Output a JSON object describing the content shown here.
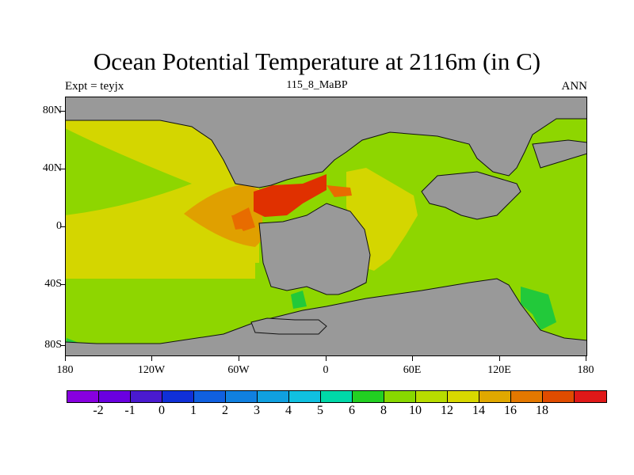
{
  "title": "Ocean Potential Temperature at 2116m (in C)",
  "subtitle_left": "Expt = teyjx",
  "subtitle_center": "115_8_MaBP",
  "subtitle_right": "ANN",
  "map": {
    "lon_ticks": [
      "180",
      "120W",
      "60W",
      "0",
      "60E",
      "120E",
      "180"
    ],
    "lat_ticks": [
      "80N",
      "40N",
      "0",
      "40S",
      "80S"
    ],
    "land_color": "#999999",
    "region_colors": {
      "coldest_band": "#00dca0",
      "deep_cold": "#22c93a",
      "cool": "#8ed600",
      "mild": "#d4d600",
      "warm": "#e0a000",
      "warmer": "#e86c00",
      "hottest": "#e03000"
    }
  },
  "colorbar": {
    "colors": [
      "#8800e0",
      "#6a00e0",
      "#4a1ad0",
      "#1030d8",
      "#1060e0",
      "#1080e0",
      "#10a0e0",
      "#10c0e0",
      "#00d8a8",
      "#22d022",
      "#88d800",
      "#b8dc00",
      "#d8d800",
      "#e0a800",
      "#e47800",
      "#e04c00",
      "#e01818"
    ],
    "labels": [
      "-2",
      "-1",
      "0",
      "1",
      "2",
      "3",
      "4",
      "5",
      "6",
      "8",
      "10",
      "12",
      "14",
      "16",
      "18"
    ]
  }
}
